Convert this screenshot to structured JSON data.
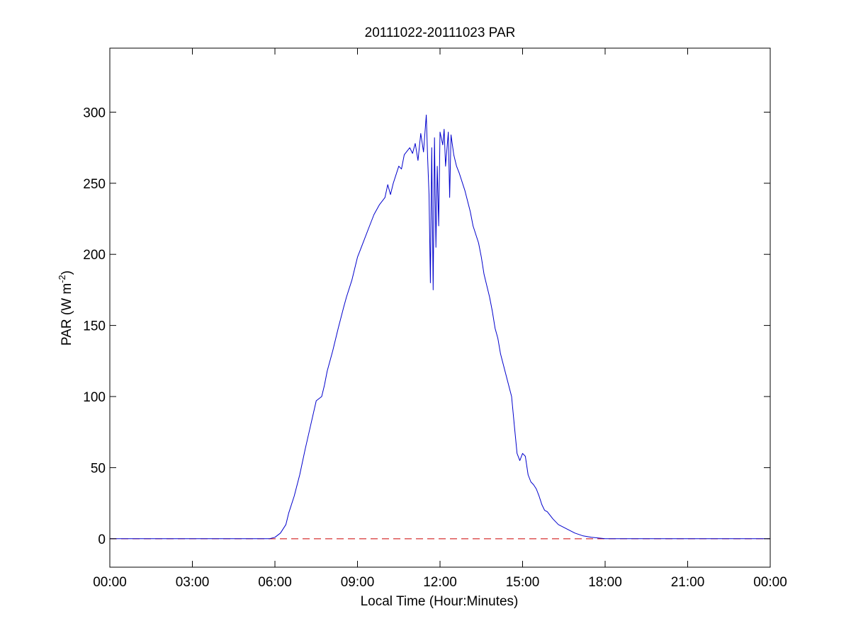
{
  "chart_data": {
    "type": "line",
    "title": "20111022-20111023 PAR",
    "xlabel": "Local Time (Hour:Minutes)",
    "ylabel": {
      "prefix": "PAR (W m",
      "superscript": "-2",
      "suffix": ")"
    },
    "x_unit": "hours",
    "xlim": [
      0,
      24
    ],
    "ylim": [
      -20,
      345
    ],
    "grid": false,
    "x_ticks": [
      {
        "value": 0,
        "label": "00:00"
      },
      {
        "value": 3,
        "label": "03:00"
      },
      {
        "value": 6,
        "label": "06:00"
      },
      {
        "value": 9,
        "label": "09:00"
      },
      {
        "value": 12,
        "label": "12:00"
      },
      {
        "value": 15,
        "label": "15:00"
      },
      {
        "value": 18,
        "label": "18:00"
      },
      {
        "value": 21,
        "label": "21:00"
      },
      {
        "value": 24,
        "label": "00:00"
      }
    ],
    "y_ticks": [
      {
        "value": 0,
        "label": "0"
      },
      {
        "value": 50,
        "label": "50"
      },
      {
        "value": 100,
        "label": "100"
      },
      {
        "value": 150,
        "label": "150"
      },
      {
        "value": 200,
        "label": "200"
      },
      {
        "value": 250,
        "label": "250"
      },
      {
        "value": 300,
        "label": "300"
      }
    ],
    "reference_line": {
      "y": 0,
      "color": "#cc0000",
      "style": "dashed"
    },
    "series": [
      {
        "color": "#0000cc",
        "x": [
          0,
          3,
          5.8,
          6.0,
          6.2,
          6.4,
          6.5,
          6.7,
          6.9,
          7.1,
          7.3,
          7.5,
          7.7,
          7.8,
          7.9,
          8.1,
          8.3,
          8.5,
          8.6,
          8.8,
          8.9,
          9.0,
          9.2,
          9.4,
          9.6,
          9.8,
          10.0,
          10.1,
          10.2,
          10.3,
          10.5,
          10.6,
          10.7,
          10.9,
          11.0,
          11.1,
          11.2,
          11.3,
          11.4,
          11.5,
          11.55,
          11.6,
          11.65,
          11.7,
          11.75,
          11.8,
          11.85,
          11.9,
          11.95,
          12.0,
          12.1,
          12.15,
          12.2,
          12.3,
          12.35,
          12.4,
          12.5,
          12.6,
          12.7,
          12.9,
          13.1,
          13.2,
          13.4,
          13.5,
          13.6,
          13.7,
          13.8,
          13.9,
          14.0,
          14.1,
          14.2,
          14.4,
          14.6,
          14.7,
          14.8,
          14.9,
          15.0,
          15.1,
          15.2,
          15.3,
          15.4,
          15.5,
          15.6,
          15.7,
          15.8,
          15.9,
          16.1,
          16.3,
          16.6,
          16.9,
          17.2,
          17.5,
          18,
          21,
          24
        ],
        "y": [
          0,
          0,
          0,
          1,
          4,
          10,
          18,
          30,
          45,
          63,
          80,
          97,
          100,
          108,
          118,
          132,
          148,
          163,
          170,
          182,
          190,
          198,
          208,
          218,
          228,
          235,
          240,
          249,
          242,
          250,
          262,
          260,
          270,
          275,
          271,
          278,
          266,
          285,
          272,
          298,
          268,
          242,
          180,
          275,
          175,
          282,
          205,
          262,
          220,
          286,
          277,
          288,
          262,
          286,
          240,
          284,
          270,
          262,
          257,
          245,
          230,
          220,
          208,
          198,
          186,
          178,
          170,
          160,
          148,
          141,
          130,
          115,
          100,
          80,
          60,
          55,
          60,
          58,
          45,
          40,
          38,
          35,
          30,
          24,
          20,
          19,
          14,
          10,
          7,
          4,
          2,
          1,
          0,
          0,
          0
        ]
      }
    ]
  }
}
